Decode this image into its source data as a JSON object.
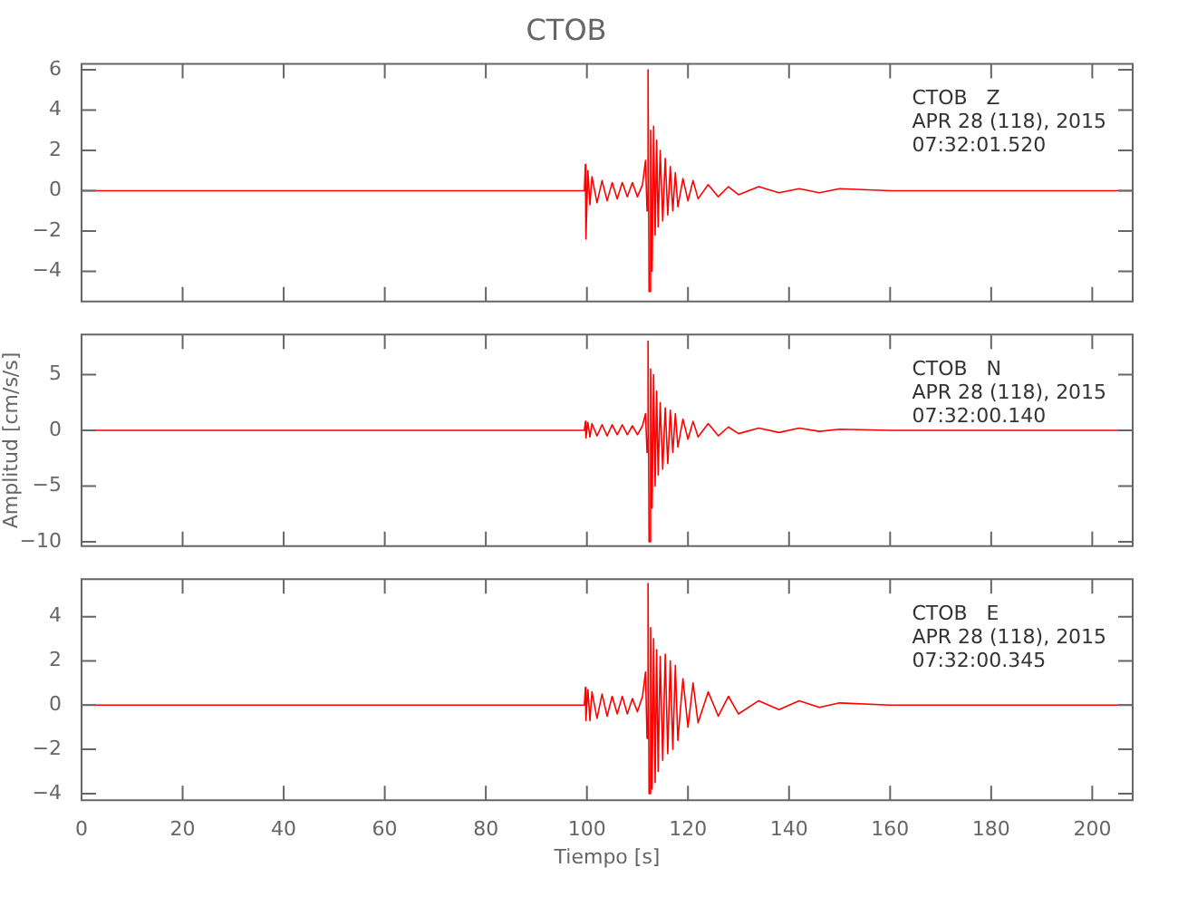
{
  "chart_data": [
    {
      "type": "line",
      "title": "CTOB",
      "color": "#ff0000",
      "marker": "none",
      "line_style": "solid",
      "grid": false,
      "legend": false,
      "tick_labels": "y",
      "annotations": [
        "CTOB   Z",
        "APR 28 (118), 2015",
        "07:32:01.520"
      ],
      "x": [
        0,
        20,
        40,
        60,
        80,
        99.5,
        99.7,
        99.8,
        100.2,
        100.6,
        101,
        102,
        103,
        104,
        105,
        106,
        107,
        108,
        109,
        110,
        111,
        111.6,
        111.9,
        112.1,
        112.3,
        112.6,
        112.9,
        113.2,
        113.5,
        113.8,
        114.1,
        114.5,
        115,
        115.5,
        116,
        116.5,
        117,
        117.5,
        118,
        119,
        120,
        121,
        122,
        124,
        126,
        128,
        130,
        134,
        138,
        142,
        146,
        150,
        160,
        180,
        208
      ],
      "values": [
        0,
        0,
        0,
        0,
        0,
        0,
        1.3,
        -2.4,
        1.0,
        -0.7,
        0.7,
        -0.6,
        0.5,
        -0.5,
        0.4,
        -0.4,
        0.4,
        -0.3,
        0.4,
        -0.3,
        0.3,
        1.5,
        -1.0,
        6.0,
        -5.0,
        3.0,
        -4.0,
        3.2,
        -2.2,
        2.5,
        -1.8,
        2.0,
        -1.5,
        1.6,
        -1.2,
        1.2,
        -1.0,
        0.9,
        -0.8,
        0.6,
        -0.5,
        0.5,
        -0.4,
        0.3,
        -0.3,
        0.2,
        -0.2,
        0.2,
        -0.1,
        0.1,
        -0.1,
        0.1,
        0,
        0,
        0
      ],
      "xlim": [
        0,
        208
      ],
      "xticks": [
        0,
        20,
        40,
        60,
        80,
        100,
        120,
        140,
        160,
        180,
        200
      ],
      "ylim": [
        -5.5,
        6.3
      ],
      "yticks": [
        -4,
        -2,
        0,
        2,
        4,
        6
      ]
    },
    {
      "type": "line",
      "ylabel": "Amplitud [cm/s/s]",
      "color": "#ff0000",
      "marker": "none",
      "line_style": "solid",
      "grid": false,
      "legend": false,
      "tick_labels": "y",
      "annotations": [
        "CTOB   N",
        "APR 28 (118), 2015",
        "07:32:00.140"
      ],
      "x": [
        0,
        20,
        40,
        60,
        80,
        99.5,
        99.7,
        99.8,
        100.2,
        100.6,
        101,
        102,
        103,
        104,
        105,
        106,
        107,
        108,
        109,
        110,
        111,
        111.6,
        111.9,
        112.1,
        112.3,
        112.6,
        112.9,
        113.2,
        113.5,
        113.8,
        114.1,
        114.5,
        115,
        115.5,
        116,
        116.5,
        117,
        117.5,
        118,
        119,
        120,
        121,
        122,
        124,
        126,
        128,
        130,
        134,
        138,
        142,
        146,
        150,
        160,
        180,
        208
      ],
      "values": [
        0,
        0,
        0,
        0,
        0,
        0,
        0.8,
        -0.7,
        0.7,
        -0.6,
        0.6,
        -0.5,
        0.5,
        -0.5,
        0.5,
        -0.4,
        0.5,
        -0.4,
        0.4,
        -0.4,
        0.4,
        1.5,
        -2.0,
        8.0,
        -10.0,
        5.5,
        -7.0,
        5.0,
        -5.0,
        3.5,
        -4.0,
        2.5,
        -3.5,
        2.0,
        -3.0,
        1.8,
        -2.0,
        1.5,
        -1.5,
        1.0,
        -0.8,
        0.8,
        -0.6,
        0.6,
        -0.5,
        0.3,
        -0.3,
        0.2,
        -0.2,
        0.2,
        -0.1,
        0.1,
        0,
        0,
        0
      ],
      "xlim": [
        0,
        208
      ],
      "xticks": [
        0,
        20,
        40,
        60,
        80,
        100,
        120,
        140,
        160,
        180,
        200
      ],
      "ylim": [
        -10.4,
        8.6
      ],
      "yticks": [
        -10,
        -5,
        0,
        5
      ]
    },
    {
      "type": "line",
      "xlabel": "Tiempo [s]",
      "color": "#ff0000",
      "marker": "none",
      "line_style": "solid",
      "grid": false,
      "legend": false,
      "annotations": [
        "CTOB   E",
        "APR 28 (118), 2015",
        "07:32:00.345"
      ],
      "x": [
        0,
        20,
        40,
        60,
        80,
        99.5,
        99.7,
        99.8,
        100.2,
        100.6,
        101,
        102,
        103,
        104,
        105,
        106,
        107,
        108,
        109,
        110,
        111,
        111.6,
        111.9,
        112.1,
        112.3,
        112.6,
        112.9,
        113.2,
        113.5,
        113.8,
        114.1,
        114.5,
        115,
        115.5,
        116,
        116.5,
        117,
        117.5,
        118,
        119,
        120,
        121,
        122,
        124,
        126,
        128,
        130,
        134,
        138,
        142,
        146,
        150,
        160,
        180,
        208
      ],
      "values": [
        0,
        0,
        0,
        0,
        0,
        0,
        0.8,
        -0.7,
        0.7,
        -0.7,
        0.6,
        -0.6,
        0.5,
        -0.5,
        0.4,
        -0.4,
        0.4,
        -0.4,
        0.3,
        -0.3,
        0.4,
        1.5,
        -1.5,
        5.5,
        -4.0,
        3.5,
        -3.8,
        3.0,
        -3.5,
        2.5,
        -3.0,
        2.2,
        -2.5,
        2.3,
        -2.2,
        2.0,
        -2.0,
        1.8,
        -1.6,
        1.2,
        -1.0,
        1.0,
        -0.8,
        0.6,
        -0.5,
        0.4,
        -0.4,
        0.2,
        -0.2,
        0.2,
        -0.1,
        0.1,
        0,
        0,
        0
      ],
      "xlim": [
        0,
        208
      ],
      "xticks": [
        0,
        20,
        40,
        60,
        80,
        100,
        120,
        140,
        160,
        180,
        200
      ],
      "ylim": [
        -4.3,
        5.7
      ],
      "yticks": [
        -4,
        -2,
        0,
        2,
        4
      ]
    }
  ]
}
